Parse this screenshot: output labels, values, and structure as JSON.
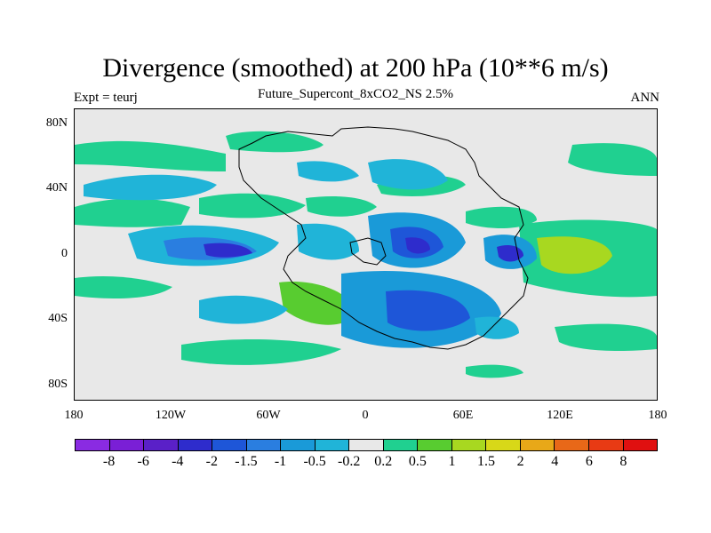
{
  "header": {
    "title": "Divergence (smoothed) at 200 hPa (10**6 m/s)",
    "left": "Expt = teurj",
    "center": "Future_Supercont_8xCO2_NS 2.5%",
    "right": "ANN"
  },
  "map": {
    "lat_labels": [
      "80N",
      "40N",
      "0",
      "40S",
      "80S"
    ],
    "lon_labels": [
      "180",
      "120W",
      "60W",
      "0",
      "60E",
      "120E",
      "180"
    ],
    "background_color": "#e8e8e8"
  },
  "colorbar": {
    "colors": [
      "#8a2be2",
      "#7a1fd6",
      "#5a20c8",
      "#2e2ccc",
      "#1e56d8",
      "#2a7ee0",
      "#1a9ad8",
      "#20b4d8",
      "#e8e8e8",
      "#20d090",
      "#58cc30",
      "#a8d820",
      "#d8d818",
      "#e8a818",
      "#e86818",
      "#e83a14",
      "#e01010"
    ],
    "labels": [
      "-8",
      "-6",
      "-4",
      "-2",
      "-1.5",
      "-1",
      "-0.5",
      "-0.2",
      "0.2",
      "0.5",
      "1",
      "1.5",
      "2",
      "4",
      "6",
      "8"
    ]
  }
}
